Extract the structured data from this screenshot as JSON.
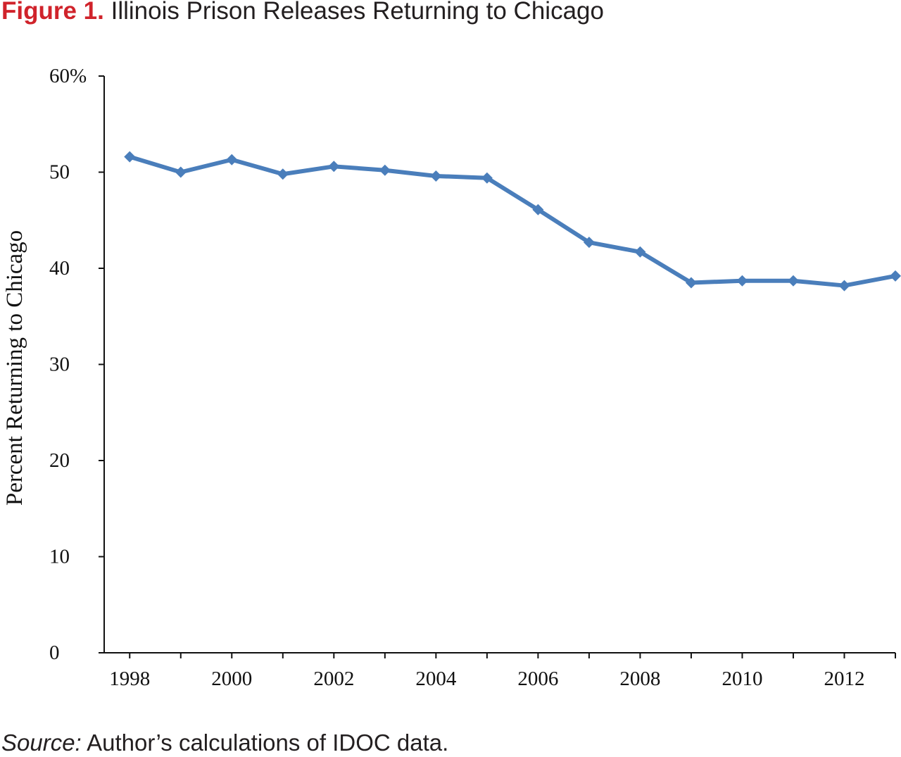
{
  "figure": {
    "label": "Figure 1.",
    "title": "Illinois Prison Releases Returning to Chicago"
  },
  "source": {
    "label": "Source:",
    "text": "Author’s calculations of IDOC data."
  },
  "colors": {
    "figure_label": "#d0232b",
    "series_line": "#4a7ebb",
    "axis": "#111111"
  },
  "chart_data": {
    "type": "line",
    "title": "Illinois Prison Releases Returning to Chicago",
    "xlabel": "",
    "ylabel": "Percent Returning to Chicago",
    "x": [
      1998,
      1999,
      2000,
      2001,
      2002,
      2003,
      2004,
      2005,
      2006,
      2007,
      2008,
      2009,
      2010,
      2011,
      2012,
      2013
    ],
    "series": [
      {
        "values": [
          51.6,
          50.0,
          51.3,
          49.8,
          50.6,
          50.2,
          49.6,
          49.4,
          46.1,
          42.7,
          41.7,
          38.5,
          38.7,
          38.7,
          38.2,
          39.2
        ]
      }
    ],
    "xlim": [
      1997.5,
      2013
    ],
    "ylim": [
      0,
      60
    ],
    "x_tick_labels": [
      "1998",
      "2000",
      "2002",
      "2004",
      "2006",
      "2008",
      "2010",
      "2012"
    ],
    "y_tick_labels": [
      "0",
      "10",
      "20",
      "30",
      "40",
      "50",
      "60%"
    ],
    "y_ticks": [
      0,
      10,
      20,
      30,
      40,
      50,
      60
    ],
    "marker": "diamond",
    "grid": false,
    "legend": "none"
  }
}
